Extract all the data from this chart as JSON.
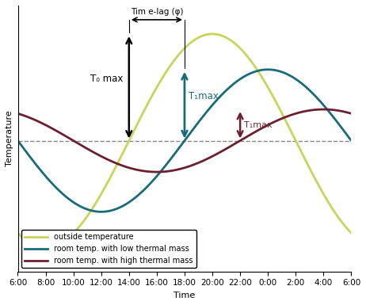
{
  "xlabel": "Time",
  "ylabel": "Temperature",
  "outside_color": "#c8d45a",
  "low_mass_color": "#1a6b7a",
  "high_mass_color": "#6b2030",
  "dashed_line_color": "#888888",
  "arrow_color_black": "#000000",
  "legend_labels": [
    "outside temperature",
    "room temp. with low thermal mass",
    "room temp. with high thermal mass"
  ],
  "tick_labels": [
    "6:00",
    "8:00",
    "10:00",
    "12:00",
    "14:00",
    "16:00",
    "18:00",
    "20:00",
    "22:00",
    "0:00",
    "2:00",
    "4:00",
    "6:00"
  ],
  "background_color": "#ffffff",
  "outside_mean": 0.3,
  "outside_amplitude": 0.75,
  "outside_peak_hour": 14,
  "low_mass_mean": 0.3,
  "low_mass_amplitude": 0.5,
  "low_mass_peak_hour": 18,
  "high_mass_mean": 0.3,
  "high_mass_amplitude": 0.22,
  "high_mass_peak_hour": 22,
  "dashed_line_y": 0.3,
  "ylim_min": -0.62,
  "ylim_max": 1.25
}
